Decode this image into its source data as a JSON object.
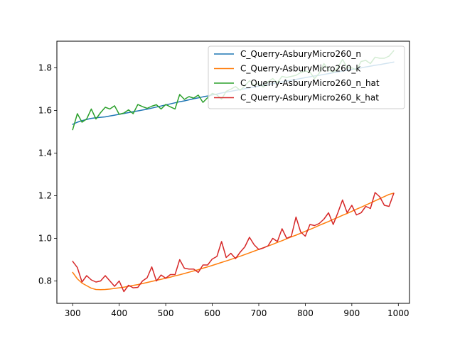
{
  "chart_data": {
    "type": "line",
    "title": "",
    "xlabel": "",
    "ylabel": "",
    "xlim": [
      266,
      1024
    ],
    "ylim": [
      0.695,
      1.925
    ],
    "xticks": [
      300,
      400,
      500,
      600,
      700,
      800,
      900,
      1000
    ],
    "yticks": [
      0.8,
      1.0,
      1.2,
      1.4,
      1.6,
      1.8
    ],
    "x_tick_labels": [
      "300",
      "400",
      "500",
      "600",
      "700",
      "800",
      "900",
      "1000"
    ],
    "y_tick_labels": [
      "0.8",
      "1.0",
      "1.2",
      "1.4",
      "1.6",
      "1.8"
    ],
    "grid": false,
    "legend_position": "top-right",
    "x": [
      300,
      310,
      320,
      330,
      340,
      350,
      360,
      370,
      380,
      390,
      400,
      410,
      420,
      430,
      440,
      450,
      460,
      470,
      480,
      490,
      500,
      510,
      520,
      530,
      540,
      550,
      560,
      570,
      580,
      590,
      600,
      610,
      620,
      630,
      640,
      650,
      660,
      670,
      680,
      690,
      700,
      710,
      720,
      730,
      740,
      750,
      760,
      770,
      780,
      790,
      800,
      810,
      820,
      830,
      840,
      850,
      860,
      870,
      880,
      890,
      900,
      910,
      920,
      930,
      940,
      950,
      960,
      970,
      980,
      990
    ],
    "series": [
      {
        "name": "C_Querry-AsburyMicro260_n",
        "color": "#1f77b4",
        "values": [
          1.535,
          1.545,
          1.552,
          1.558,
          1.563,
          1.566,
          1.568,
          1.57,
          1.574,
          1.578,
          1.582,
          1.586,
          1.59,
          1.594,
          1.598,
          1.602,
          1.606,
          1.611,
          1.616,
          1.621,
          1.626,
          1.631,
          1.636,
          1.641,
          1.645,
          1.65,
          1.655,
          1.659,
          1.664,
          1.668,
          1.673,
          1.677,
          1.682,
          1.686,
          1.69,
          1.694,
          1.698,
          1.702,
          1.706,
          1.71,
          1.714,
          1.718,
          1.722,
          1.726,
          1.73,
          1.734,
          1.738,
          1.742,
          1.746,
          1.75,
          1.754,
          1.758,
          1.762,
          1.765,
          1.769,
          1.773,
          1.777,
          1.781,
          1.785,
          1.789,
          1.792,
          1.796,
          1.8,
          1.804,
          1.808,
          1.812,
          1.815,
          1.819,
          1.823,
          1.827
        ]
      },
      {
        "name": "C_Querry-AsburyMicro260_k",
        "color": "#ff7f0e",
        "values": [
          0.84,
          0.81,
          0.79,
          0.778,
          0.766,
          0.76,
          0.759,
          0.76,
          0.762,
          0.765,
          0.768,
          0.771,
          0.775,
          0.779,
          0.783,
          0.788,
          0.793,
          0.798,
          0.803,
          0.808,
          0.813,
          0.818,
          0.824,
          0.829,
          0.835,
          0.841,
          0.847,
          0.853,
          0.86,
          0.866,
          0.873,
          0.88,
          0.887,
          0.894,
          0.901,
          0.909,
          0.916,
          0.924,
          0.932,
          0.94,
          0.948,
          0.956,
          0.964,
          0.972,
          0.981,
          0.989,
          0.998,
          1.007,
          1.015,
          1.024,
          1.033,
          1.042,
          1.051,
          1.061,
          1.07,
          1.079,
          1.089,
          1.098,
          1.108,
          1.117,
          1.127,
          1.137,
          1.146,
          1.156,
          1.166,
          1.176,
          1.186,
          1.196,
          1.206,
          1.212
        ]
      },
      {
        "name": "C_Querry-AsburyMicro260_n_hat",
        "color": "#2ca02c",
        "values": [
          1.51,
          1.585,
          1.545,
          1.56,
          1.607,
          1.56,
          1.59,
          1.615,
          1.607,
          1.622,
          1.582,
          1.588,
          1.603,
          1.585,
          1.628,
          1.618,
          1.61,
          1.62,
          1.627,
          1.607,
          1.628,
          1.617,
          1.607,
          1.675,
          1.652,
          1.665,
          1.658,
          1.672,
          1.638,
          1.66,
          1.68,
          1.673,
          1.653,
          1.69,
          1.7,
          1.712,
          1.695,
          1.715,
          1.74,
          1.718,
          1.727,
          1.71,
          1.735,
          1.75,
          1.73,
          1.76,
          1.755,
          1.76,
          1.765,
          1.778,
          1.785,
          1.78,
          1.75,
          1.775,
          1.82,
          1.79,
          1.78,
          1.8,
          1.84,
          1.8,
          1.8,
          1.79,
          1.83,
          1.835,
          1.82,
          1.85,
          1.845,
          1.845,
          1.855,
          1.88
        ]
      },
      {
        "name": "C_Querry-AsburyMicro260_k_hat",
        "color": "#d62728",
        "values": [
          0.892,
          0.863,
          0.795,
          0.825,
          0.805,
          0.795,
          0.8,
          0.825,
          0.8,
          0.775,
          0.8,
          0.75,
          0.78,
          0.768,
          0.77,
          0.8,
          0.815,
          0.866,
          0.8,
          0.828,
          0.813,
          0.83,
          0.83,
          0.9,
          0.86,
          0.856,
          0.856,
          0.84,
          0.875,
          0.875,
          0.903,
          0.915,
          0.985,
          0.91,
          0.93,
          0.905,
          0.935,
          0.96,
          1.005,
          0.97,
          0.948,
          0.955,
          0.965,
          1.0,
          0.985,
          1.045,
          1.0,
          1.01,
          1.1,
          1.03,
          1.01,
          1.065,
          1.06,
          1.07,
          1.09,
          1.12,
          1.065,
          1.12,
          1.18,
          1.12,
          1.155,
          1.11,
          1.12,
          1.15,
          1.14,
          1.215,
          1.195,
          1.155,
          1.15,
          1.21
        ]
      }
    ]
  }
}
